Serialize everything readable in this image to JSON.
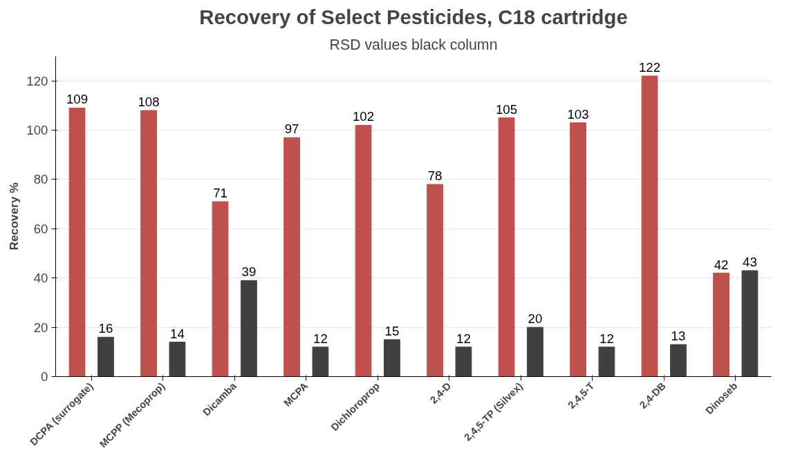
{
  "chart_data": {
    "type": "bar",
    "title": "Recovery of Select Pesticides, C18 cartridge",
    "subtitle": "RSD values black column",
    "ylabel": "Recovery %",
    "categories": [
      "DCPA (surrogate)",
      "MCPP (Mecoprop)",
      "Dicamba",
      "MCPA",
      "Dichloroprop",
      "2,4-D",
      "2,4,5-TP (Silvex)",
      "2,4,5-T",
      "2,4-DB",
      "Dinoseb"
    ],
    "series": [
      {
        "color": "#c0504d",
        "values": [
          109,
          108,
          71,
          97,
          102,
          78,
          105,
          103,
          122,
          42
        ]
      },
      {
        "color": "#404040",
        "values": [
          16,
          14,
          39,
          12,
          15,
          12,
          20,
          12,
          13,
          43
        ]
      }
    ],
    "ylim": [
      0,
      130
    ],
    "yticks": [
      0,
      20,
      40,
      60,
      80,
      100,
      120
    ],
    "grid": "y",
    "data_labels": true
  }
}
